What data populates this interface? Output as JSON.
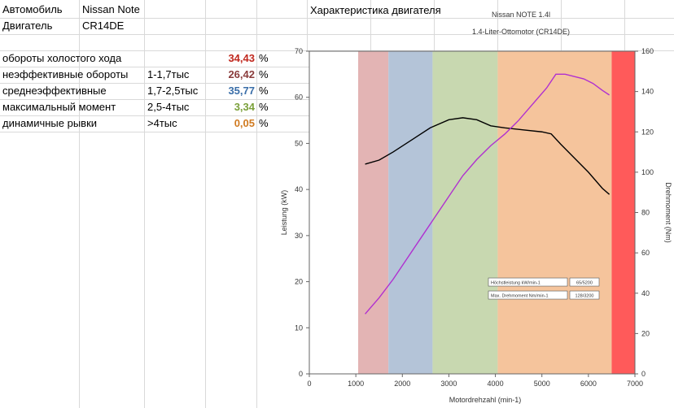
{
  "sheet": {
    "row1": {
      "a": "Автомобиль",
      "b": "Nissan Note"
    },
    "row2": {
      "a": "Двигатель",
      "b": "CR14DE"
    },
    "rows": [
      {
        "label": "обороты холостого хода",
        "range": "",
        "value": "34,43",
        "color": "#c0281e",
        "unit": "%"
      },
      {
        "label": "неэффективные обороты",
        "range": "1-1,7тыс",
        "value": "26,42",
        "color": "#8a3c3c",
        "unit": "%"
      },
      {
        "label": "среднеэффективные",
        "range": "1,7-2,5тыс",
        "value": "35,77",
        "color": "#3a6ea8",
        "unit": "%"
      },
      {
        "label": "максимальный момент",
        "range": "2,5-4тыс",
        "value": "3,34",
        "color": "#7aa03a",
        "unit": "%"
      },
      {
        "label": "динамичные рывки",
        "range": ">4тыс",
        "value": "0,05",
        "color": "#d07a20",
        "unit": "%"
      }
    ],
    "chart_heading": "Характеристика двигателя"
  },
  "chart_data": {
    "type": "line",
    "title": "Nissan NOTE 1.4l",
    "subtitle": "1.4-Liter-Ottomotor (CR14DE)",
    "xlabel": "Motordrehzahl (min-1)",
    "ylabel": "Leistung (kW)",
    "y2label": "Drehmoment (Nm)",
    "xlim": [
      0,
      7000
    ],
    "ylim": [
      0,
      70
    ],
    "y2lim": [
      0,
      160
    ],
    "xticks": [
      "0",
      "1000",
      "2000",
      "3000",
      "4000",
      "5000",
      "6000",
      "7000"
    ],
    "yticks": [
      "0",
      "10",
      "20",
      "30",
      "40",
      "50",
      "60",
      "70"
    ],
    "y2ticks": [
      "0",
      "20",
      "40",
      "60",
      "80",
      "100",
      "120",
      "140",
      "160"
    ],
    "bands": [
      {
        "from": 1050,
        "to": 1700,
        "color": "#e3b4b4"
      },
      {
        "from": 1700,
        "to": 2650,
        "color": "#b4c4d8"
      },
      {
        "from": 2650,
        "to": 4050,
        "color": "#c8d8b0"
      },
      {
        "from": 4050,
        "to": 6500,
        "color": "#f5c49c"
      },
      {
        "from": 6500,
        "to": 7000,
        "color": "#ff5a5a"
      }
    ],
    "series": [
      {
        "axis": "y2",
        "color": "#000000",
        "x": [
          1200,
          1500,
          1800,
          2200,
          2600,
          3000,
          3300,
          3600,
          3900,
          4200,
          4600,
          5000,
          5200,
          5400,
          5700,
          6000,
          6300,
          6450
        ],
        "values": [
          104,
          106,
          110,
          116,
          122,
          126,
          127,
          126,
          123,
          122,
          121,
          120,
          119,
          114,
          107,
          100,
          92,
          89
        ]
      },
      {
        "axis": "y",
        "color": "#b030d0",
        "x": [
          1200,
          1500,
          1800,
          2100,
          2400,
          2700,
          3000,
          3300,
          3600,
          3900,
          4200,
          4500,
          4800,
          5100,
          5300,
          5500,
          5700,
          5900,
          6100,
          6300,
          6450
        ],
        "values": [
          13,
          16.5,
          20.5,
          25,
          29.5,
          34,
          38.5,
          43,
          46.5,
          49.5,
          52,
          55,
          58.5,
          62,
          65,
          65,
          64.5,
          64,
          63,
          61.5,
          60.5
        ]
      }
    ],
    "annotations": [
      {
        "label": "Höchstleistung kW/min-1",
        "value": "65/5200"
      },
      {
        "label": "Max. Drehmoment Nm/min-1",
        "value": "128/3200"
      }
    ]
  }
}
